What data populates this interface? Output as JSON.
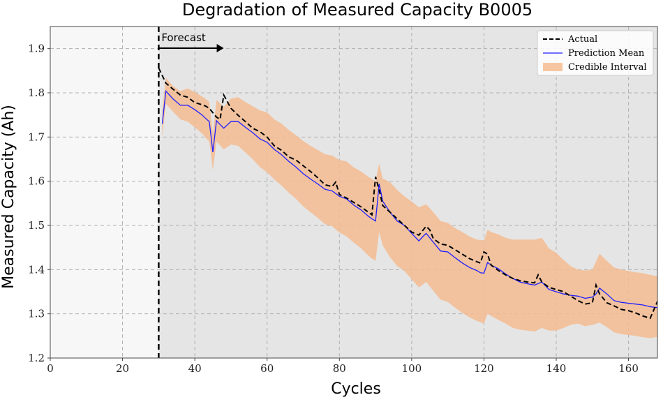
{
  "chart_data": {
    "type": "line",
    "title": "Degradation of Measured Capacity B0005",
    "xlabel": "Cycles",
    "ylabel": "Measured Capacity (Ah)",
    "xlim": [
      0,
      168
    ],
    "ylim": [
      1.2,
      1.95
    ],
    "xticks": [
      0,
      20,
      40,
      60,
      80,
      100,
      120,
      140,
      160
    ],
    "yticks": [
      1.2,
      1.3,
      1.4,
      1.5,
      1.6,
      1.7,
      1.8,
      1.9
    ],
    "ytick_labels": [
      "1.2",
      "1.3",
      "1.4",
      "1.5",
      "1.6",
      "1.7",
      "1.8",
      "1.9"
    ],
    "grid": true,
    "legend_position": "top-right",
    "forecast_start": 30,
    "annotation": "Forecast",
    "colors": {
      "history_bg": "#f7f7f7",
      "forecast_bg": "#e5e5e5",
      "actual": "#000000",
      "prediction": "#1f1fff",
      "interval": "#f4bc92",
      "grid": "#b0b0b0"
    },
    "series": [
      {
        "name": "Actual",
        "style": "dashed",
        "x": [
          30,
          32,
          34,
          36,
          38,
          40,
          42,
          43,
          44,
          45,
          46,
          47,
          48,
          50,
          52,
          54,
          56,
          58,
          60,
          62,
          64,
          66,
          68,
          70,
          72,
          74,
          76,
          78,
          79,
          80,
          82,
          84,
          86,
          88,
          89,
          90,
          91,
          92,
          94,
          96,
          98,
          100,
          102,
          104,
          105,
          106,
          108,
          110,
          112,
          114,
          116,
          118,
          119,
          120,
          121,
          122,
          124,
          126,
          128,
          130,
          132,
          134,
          135,
          136,
          138,
          140,
          142,
          144,
          146,
          148,
          150,
          151,
          152,
          154,
          156,
          158,
          160,
          162,
          164,
          166,
          168
        ],
        "y": [
          1.856,
          1.822,
          1.808,
          1.795,
          1.79,
          1.778,
          1.773,
          1.77,
          1.765,
          1.755,
          1.745,
          1.74,
          1.795,
          1.765,
          1.749,
          1.735,
          1.72,
          1.712,
          1.7,
          1.68,
          1.67,
          1.655,
          1.648,
          1.635,
          1.622,
          1.608,
          1.592,
          1.588,
          1.598,
          1.57,
          1.562,
          1.552,
          1.542,
          1.53,
          1.524,
          1.61,
          1.58,
          1.545,
          1.53,
          1.515,
          1.5,
          1.485,
          1.478,
          1.498,
          1.49,
          1.47,
          1.458,
          1.455,
          1.445,
          1.435,
          1.425,
          1.418,
          1.415,
          1.44,
          1.435,
          1.41,
          1.398,
          1.388,
          1.38,
          1.375,
          1.372,
          1.37,
          1.388,
          1.372,
          1.36,
          1.355,
          1.35,
          1.34,
          1.33,
          1.322,
          1.325,
          1.365,
          1.345,
          1.325,
          1.318,
          1.31,
          1.307,
          1.302,
          1.295,
          1.29,
          1.328
        ]
      },
      {
        "name": "Prediction Mean",
        "style": "solid",
        "x": [
          31,
          32,
          34,
          36,
          38,
          40,
          42,
          43,
          44,
          45,
          46,
          47,
          48,
          50,
          52,
          54,
          56,
          58,
          60,
          62,
          64,
          66,
          68,
          70,
          72,
          74,
          76,
          78,
          80,
          82,
          84,
          86,
          88,
          89,
          90,
          91,
          92,
          94,
          96,
          98,
          100,
          102,
          103,
          104,
          106,
          108,
          110,
          112,
          114,
          116,
          118,
          119,
          120,
          121,
          122,
          124,
          126,
          128,
          130,
          132,
          134,
          136,
          138,
          140,
          142,
          144,
          146,
          148,
          150,
          151,
          152,
          154,
          156,
          158,
          160,
          162,
          164,
          166,
          168
        ],
        "y": [
          1.73,
          1.804,
          1.786,
          1.772,
          1.772,
          1.762,
          1.75,
          1.742,
          1.735,
          1.666,
          1.737,
          1.728,
          1.72,
          1.735,
          1.735,
          1.722,
          1.71,
          1.696,
          1.688,
          1.672,
          1.66,
          1.645,
          1.632,
          1.617,
          1.605,
          1.594,
          1.582,
          1.578,
          1.566,
          1.56,
          1.546,
          1.535,
          1.521,
          1.515,
          1.51,
          1.594,
          1.555,
          1.53,
          1.51,
          1.5,
          1.482,
          1.465,
          1.474,
          1.482,
          1.462,
          1.442,
          1.44,
          1.427,
          1.415,
          1.405,
          1.398,
          1.393,
          1.392,
          1.416,
          1.41,
          1.402,
          1.39,
          1.38,
          1.372,
          1.368,
          1.365,
          1.372,
          1.355,
          1.35,
          1.345,
          1.342,
          1.34,
          1.335,
          1.338,
          1.345,
          1.358,
          1.345,
          1.33,
          1.326,
          1.324,
          1.322,
          1.32,
          1.316,
          1.314
        ]
      },
      {
        "name": "Credible Interval",
        "style": "band",
        "x": [
          31,
          32,
          34,
          36,
          38,
          40,
          42,
          43,
          44,
          45,
          46,
          48,
          50,
          52,
          54,
          56,
          58,
          60,
          62,
          64,
          66,
          68,
          70,
          72,
          74,
          76,
          78,
          80,
          82,
          84,
          86,
          88,
          89,
          90,
          91,
          92,
          94,
          96,
          98,
          100,
          102,
          104,
          106,
          108,
          110,
          112,
          114,
          116,
          118,
          120,
          121,
          122,
          124,
          126,
          128,
          130,
          132,
          134,
          136,
          138,
          140,
          142,
          144,
          146,
          148,
          150,
          152,
          154,
          156,
          158,
          160,
          162,
          164,
          166,
          168
        ],
        "lower": [
          1.7,
          1.775,
          1.757,
          1.74,
          1.735,
          1.722,
          1.708,
          1.698,
          1.69,
          1.625,
          1.69,
          1.672,
          1.683,
          1.68,
          1.665,
          1.65,
          1.632,
          1.62,
          1.604,
          1.59,
          1.574,
          1.56,
          1.543,
          1.53,
          1.517,
          1.503,
          1.498,
          1.484,
          1.475,
          1.461,
          1.448,
          1.432,
          1.425,
          1.42,
          1.485,
          1.455,
          1.428,
          1.408,
          1.397,
          1.378,
          1.36,
          1.372,
          1.352,
          1.332,
          1.327,
          1.314,
          1.302,
          1.292,
          1.284,
          1.278,
          1.3,
          1.295,
          1.286,
          1.278,
          1.268,
          1.264,
          1.262,
          1.26,
          1.268,
          1.262,
          1.262,
          1.268,
          1.275,
          1.278,
          1.272,
          1.275,
          1.28,
          1.27,
          1.258,
          1.254,
          1.252,
          1.25,
          1.247,
          1.245,
          1.248
        ],
        "upper": [
          1.76,
          1.834,
          1.815,
          1.804,
          1.81,
          1.802,
          1.792,
          1.786,
          1.78,
          1.708,
          1.784,
          1.768,
          1.787,
          1.79,
          1.779,
          1.77,
          1.76,
          1.756,
          1.74,
          1.73,
          1.716,
          1.704,
          1.691,
          1.68,
          1.671,
          1.661,
          1.658,
          1.648,
          1.645,
          1.631,
          1.622,
          1.61,
          1.605,
          1.6,
          1.64,
          1.606,
          1.598,
          1.58,
          1.566,
          1.554,
          1.541,
          1.548,
          1.53,
          1.51,
          1.506,
          1.494,
          1.485,
          1.475,
          1.468,
          1.466,
          1.49,
          1.485,
          1.48,
          1.472,
          1.468,
          1.468,
          1.468,
          1.468,
          1.472,
          1.448,
          1.438,
          1.422,
          1.408,
          1.4,
          1.398,
          1.4,
          1.436,
          1.42,
          1.405,
          1.4,
          1.397,
          1.394,
          1.392,
          1.388,
          1.385
        ]
      }
    ]
  }
}
